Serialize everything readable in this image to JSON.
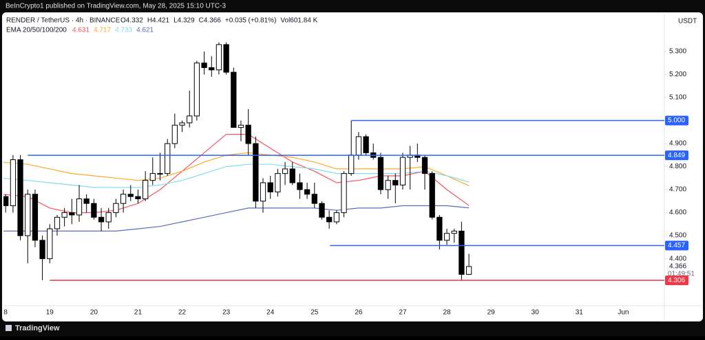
{
  "header": {
    "published": "BeInCrypto1 published on TradingView.com, May 28, 2025 15:10 UTC-3",
    "brand": "TradingView"
  },
  "chart_data": {
    "type": "candlestick",
    "symbol": "RENDER / TetherUS · 4h · BINANCE",
    "status": [
      "O4.332",
      "H4.421",
      "L4.329",
      "C4.366",
      "+0.035 (+0.81%)",
      "Vol601.84 K"
    ],
    "indicator": "EMA 20/50/100/200",
    "y_unit": "USDT",
    "up_color": "#ffffff",
    "down_color": "#000000",
    "x": [
      17.833,
      18,
      18.167,
      18.333,
      18.5,
      18.667,
      18.833,
      19,
      19.167,
      19.333,
      19.5,
      19.667,
      19.833,
      20,
      20.167,
      20.333,
      20.5,
      20.667,
      20.833,
      21,
      21.167,
      21.333,
      21.5,
      21.667,
      21.833,
      22,
      22.167,
      22.333,
      22.5,
      22.667,
      22.833,
      23,
      23.167,
      23.333,
      23.5,
      23.667,
      23.833,
      24,
      24.167,
      24.333,
      24.5,
      24.667,
      24.833,
      25,
      25.167,
      25.333,
      25.5,
      25.667,
      25.833,
      26,
      26.167,
      26.333,
      26.5,
      26.667,
      26.833,
      27,
      27.167,
      27.333,
      27.5,
      27.667,
      27.833,
      28,
      28.167,
      28.333,
      28.5
    ],
    "open": [
      4.55,
      4.67,
      4.63,
      4.83,
      4.5,
      4.68,
      4.48,
      4.4,
      4.53,
      4.58,
      4.6,
      4.59,
      4.66,
      4.64,
      4.58,
      4.56,
      4.6,
      4.64,
      4.68,
      4.67,
      4.66,
      4.74,
      4.77,
      4.77,
      4.9,
      4.98,
      4.99,
      5.02,
      5.25,
      5.23,
      5.22,
      5.33,
      5.21,
      4.97,
      4.98,
      4.9,
      4.65,
      4.73,
      4.69,
      4.77,
      4.79,
      4.73,
      4.7,
      4.68,
      4.64,
      4.58,
      4.56,
      4.6,
      4.77,
      4.85,
      4.93,
      4.86,
      4.84,
      4.7,
      4.74,
      4.72,
      4.84,
      4.85,
      4.84,
      4.77,
      4.58,
      4.48,
      4.51,
      4.52,
      4.332
    ],
    "high": [
      4.69,
      4.68,
      4.85,
      4.85,
      4.7,
      4.7,
      4.5,
      4.55,
      4.59,
      4.62,
      4.66,
      4.72,
      4.68,
      4.66,
      4.62,
      4.62,
      4.66,
      4.7,
      4.72,
      4.7,
      4.78,
      4.84,
      4.86,
      4.92,
      5.03,
      5.0,
      5.13,
      5.26,
      5.3,
      5.28,
      5.34,
      5.34,
      5.23,
      5.0,
      5.05,
      4.93,
      4.75,
      4.76,
      4.79,
      4.82,
      4.82,
      4.77,
      4.73,
      4.73,
      4.65,
      4.61,
      4.61,
      4.78,
      5.0,
      4.95,
      4.94,
      4.9,
      4.86,
      4.76,
      4.77,
      4.86,
      4.89,
      4.9,
      4.85,
      4.78,
      4.59,
      4.53,
      4.53,
      4.56,
      4.421
    ],
    "low": [
      4.52,
      4.6,
      4.6,
      4.48,
      4.38,
      4.45,
      4.306,
      4.38,
      4.5,
      4.54,
      4.55,
      4.56,
      4.6,
      4.57,
      4.52,
      4.53,
      4.58,
      4.6,
      4.65,
      4.64,
      4.65,
      4.72,
      4.74,
      4.76,
      4.88,
      4.95,
      4.97,
      5.0,
      5.2,
      5.19,
      5.2,
      5.2,
      4.97,
      4.91,
      4.85,
      4.62,
      4.6,
      4.66,
      4.67,
      4.72,
      4.72,
      4.66,
      4.66,
      4.62,
      4.57,
      4.53,
      4.55,
      4.58,
      4.76,
      4.83,
      4.85,
      4.83,
      4.68,
      4.66,
      4.64,
      4.7,
      4.7,
      4.82,
      4.7,
      4.57,
      4.44,
      4.46,
      4.47,
      4.306,
      4.329
    ],
    "close": [
      4.67,
      4.63,
      4.83,
      4.5,
      4.68,
      4.48,
      4.4,
      4.53,
      4.58,
      4.6,
      4.59,
      4.66,
      4.64,
      4.58,
      4.56,
      4.6,
      4.64,
      4.68,
      4.67,
      4.66,
      4.74,
      4.77,
      4.77,
      4.9,
      4.98,
      4.99,
      5.02,
      5.25,
      5.23,
      5.22,
      5.33,
      5.21,
      4.97,
      4.98,
      4.9,
      4.65,
      4.73,
      4.69,
      4.77,
      4.79,
      4.73,
      4.7,
      4.68,
      4.64,
      4.58,
      4.56,
      4.6,
      4.77,
      4.85,
      4.93,
      4.86,
      4.84,
      4.7,
      4.74,
      4.72,
      4.84,
      4.85,
      4.84,
      4.77,
      4.58,
      4.48,
      4.51,
      4.52,
      4.332,
      4.366
    ],
    "ema_x": [
      17.9,
      18.5,
      19,
      19.5,
      20,
      20.5,
      21,
      21.5,
      22,
      22.5,
      23,
      23.5,
      24,
      24.5,
      25,
      25.5,
      26,
      26.5,
      27,
      27.5,
      28,
      28.5
    ],
    "ema": [
      {
        "name": "20",
        "color": "#f7525f",
        "legend_value": "4.631",
        "values": [
          4.68,
          4.67,
          4.62,
          4.6,
          4.6,
          4.61,
          4.64,
          4.7,
          4.78,
          4.86,
          4.94,
          4.94,
          4.88,
          4.82,
          4.78,
          4.73,
          4.74,
          4.76,
          4.76,
          4.78,
          4.7,
          4.631
        ]
      },
      {
        "name": "50",
        "color": "#ffa726",
        "legend_value": "4.717",
        "values": [
          4.82,
          4.81,
          4.79,
          4.77,
          4.76,
          4.75,
          4.74,
          4.75,
          4.78,
          4.82,
          4.85,
          4.86,
          4.85,
          4.84,
          4.82,
          4.79,
          4.79,
          4.79,
          4.79,
          4.8,
          4.76,
          4.717
        ]
      },
      {
        "name": "100",
        "color": "#80deea",
        "legend_value": "4.733",
        "values": [
          4.75,
          4.74,
          4.73,
          4.72,
          4.71,
          4.71,
          4.71,
          4.72,
          4.74,
          4.77,
          4.8,
          4.81,
          4.81,
          4.8,
          4.79,
          4.77,
          4.77,
          4.77,
          4.77,
          4.78,
          4.76,
          4.733
        ]
      },
      {
        "name": "200",
        "color": "#5c6bc0",
        "legend_value": "4.621",
        "values": [
          4.52,
          4.52,
          4.52,
          4.52,
          4.52,
          4.52,
          4.53,
          4.54,
          4.56,
          4.58,
          4.6,
          4.62,
          4.62,
          4.62,
          4.62,
          4.61,
          4.62,
          4.62,
          4.63,
          4.63,
          4.63,
          4.621
        ]
      }
    ],
    "levels": [
      {
        "value": 5.0,
        "label": "5.000",
        "color": "#2962ff",
        "from": 25.83
      },
      {
        "value": 4.849,
        "label": "4.849",
        "color": "#2962ff",
        "from": 18.5
      },
      {
        "value": 4.457,
        "label": "4.457",
        "color": "#2962ff",
        "from": 25.35
      },
      {
        "value": 4.306,
        "label": "4.306",
        "color": "#f23645",
        "from": 19.0
      }
    ],
    "current": {
      "value": 4.366,
      "label": "4.366",
      "countdown": "01:49:51"
    },
    "xlim": [
      17.95,
      32.93
    ],
    "xticks": [
      {
        "value": 18,
        "label": "8"
      },
      19,
      20,
      21,
      22,
      23,
      24,
      25,
      26,
      27,
      28,
      29,
      30,
      31,
      {
        "value": 32,
        "label": "Jun"
      }
    ],
    "ylim": [
      4.196,
      5.464
    ],
    "yticks": [
      {
        "value": 4.4,
        "label": "4.400"
      },
      {
        "value": 4.5,
        "label": "4.500"
      },
      {
        "value": 4.6,
        "label": "4.600"
      },
      {
        "value": 4.7,
        "label": "4.700"
      },
      {
        "value": 4.8,
        "label": "4.800"
      },
      {
        "value": 4.9,
        "label": "4.900"
      },
      {
        "value": 5.1,
        "label": "5.100"
      },
      {
        "value": 5.2,
        "label": "5.200"
      },
      {
        "value": 5.3,
        "label": "5.300"
      }
    ]
  }
}
